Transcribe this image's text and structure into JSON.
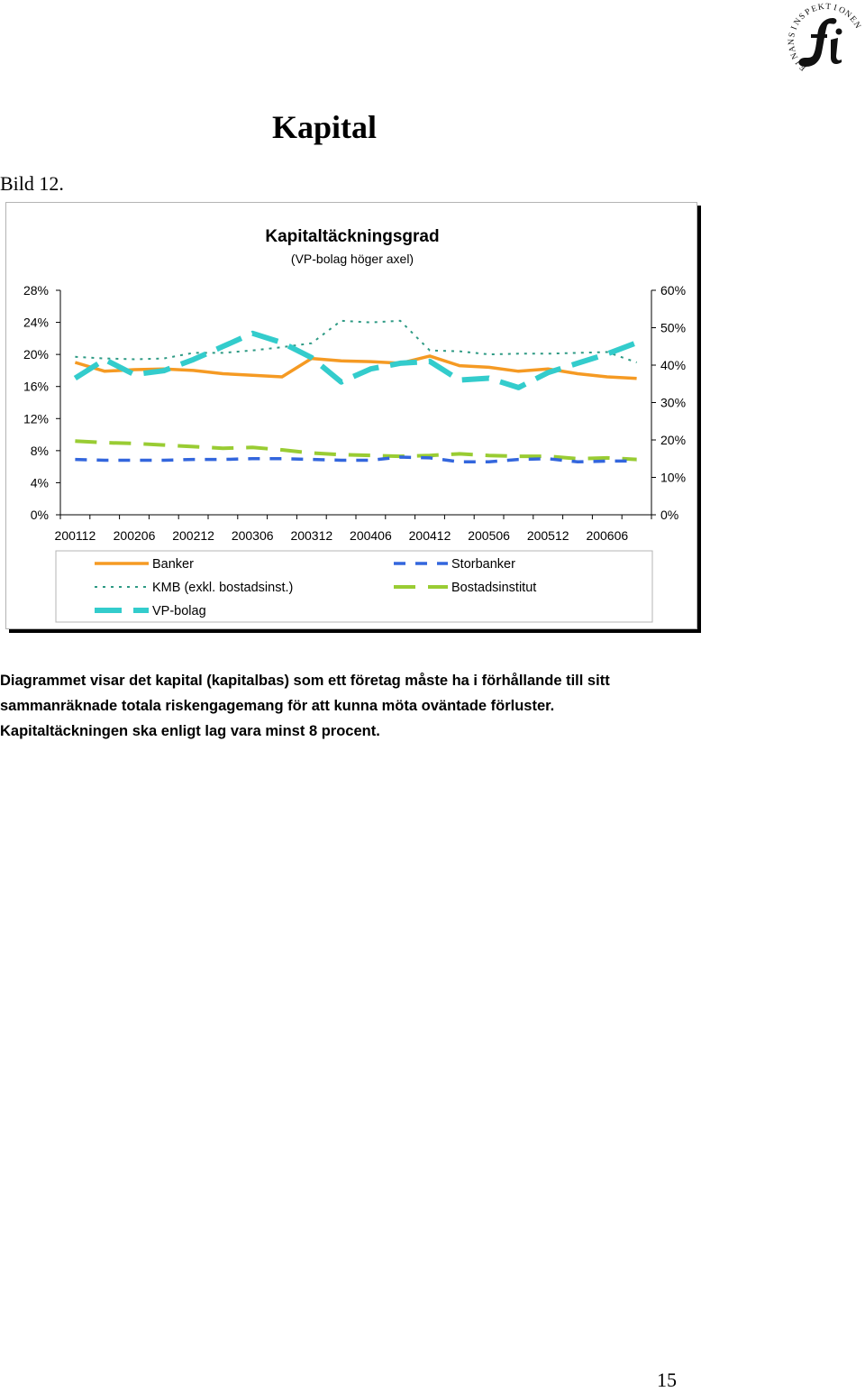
{
  "page": {
    "title": "Kapital",
    "label": "Bild 12.",
    "caption": [
      "Diagrammet visar det kapital (kapitalbas) som ett företag måste ha i förhållande till sitt",
      "sammanräknade totala riskengagemang för att kunna möta oväntade förluster.",
      "Kapitaltäckningen ska enligt lag vara minst 8 procent."
    ],
    "page_number": "15",
    "logo": {
      "text": "FINANSINSPEKTIONEN",
      "mark": "fi",
      "icon": "finansinspektionen-logo-icon"
    }
  },
  "chart_data": {
    "type": "line",
    "title": "Kapitaltäckningsgrad",
    "subtitle": "(VP-bolag höger axel)",
    "x": [
      "200112",
      "200203",
      "200206",
      "200209",
      "200212",
      "200303",
      "200306",
      "200309",
      "200312",
      "200403",
      "200406",
      "200409",
      "200412",
      "200503",
      "200506",
      "200509",
      "200512",
      "200603",
      "200606",
      "200609"
    ],
    "x_tick_labels": [
      "200112",
      "200206",
      "200212",
      "200306",
      "200312",
      "200406",
      "200412",
      "200506",
      "200512",
      "200606"
    ],
    "y_left": {
      "min": 0,
      "max": 28,
      "step": 4,
      "tick_labels": [
        "0%",
        "4%",
        "8%",
        "12%",
        "16%",
        "20%",
        "24%",
        "28%"
      ]
    },
    "y_right": {
      "min": 0,
      "max": 60,
      "step": 10,
      "tick_labels": [
        "0%",
        "10%",
        "20%",
        "30%",
        "40%",
        "50%",
        "60%"
      ]
    },
    "legend": {
      "placement": "bottom"
    },
    "grid": false,
    "series": [
      {
        "name": "Banker",
        "axis": "left",
        "color": "#f59a23",
        "style": "solid",
        "values": [
          19.0,
          17.9,
          18.1,
          18.2,
          18.0,
          17.6,
          17.4,
          17.2,
          19.5,
          19.2,
          19.1,
          18.9,
          19.8,
          18.6,
          18.4,
          17.9,
          18.2,
          17.6,
          17.2,
          17.0
        ]
      },
      {
        "name": "Storbanker",
        "axis": "left",
        "color": "#3366dd",
        "style": "dash",
        "values": [
          6.9,
          6.8,
          6.8,
          6.8,
          6.9,
          6.9,
          7.0,
          7.0,
          6.9,
          6.8,
          6.8,
          7.2,
          7.1,
          6.6,
          6.6,
          6.9,
          7.0,
          6.6,
          6.7,
          6.7
        ]
      },
      {
        "name": "KMB (exkl. bostadsinst.)",
        "axis": "left",
        "color": "#2e9a84",
        "style": "dot",
        "values": [
          19.7,
          19.5,
          19.4,
          19.5,
          20.2,
          20.2,
          20.5,
          20.9,
          21.4,
          24.2,
          24.0,
          24.2,
          20.5,
          20.4,
          20.0,
          20.1,
          20.1,
          20.2,
          20.3,
          19.0
        ]
      },
      {
        "name": "Bostadsinstitut",
        "axis": "left",
        "color": "#99cc33",
        "style": "longdash",
        "values": [
          9.2,
          9.0,
          8.9,
          8.7,
          8.5,
          8.3,
          8.4,
          8.1,
          7.7,
          7.5,
          7.4,
          7.3,
          7.4,
          7.6,
          7.4,
          7.3,
          7.3,
          7.0,
          7.1,
          6.9
        ]
      },
      {
        "name": "VP-bolag",
        "axis": "right",
        "color": "#33cccc",
        "style": "heavydash",
        "values": [
          36.5,
          41.5,
          37.5,
          38.5,
          41.5,
          45.0,
          48.5,
          46.0,
          42.0,
          35.5,
          39.0,
          40.5,
          41.0,
          36.0,
          36.5,
          34.0,
          38.0,
          40.5,
          43.0,
          46.0
        ]
      }
    ]
  }
}
